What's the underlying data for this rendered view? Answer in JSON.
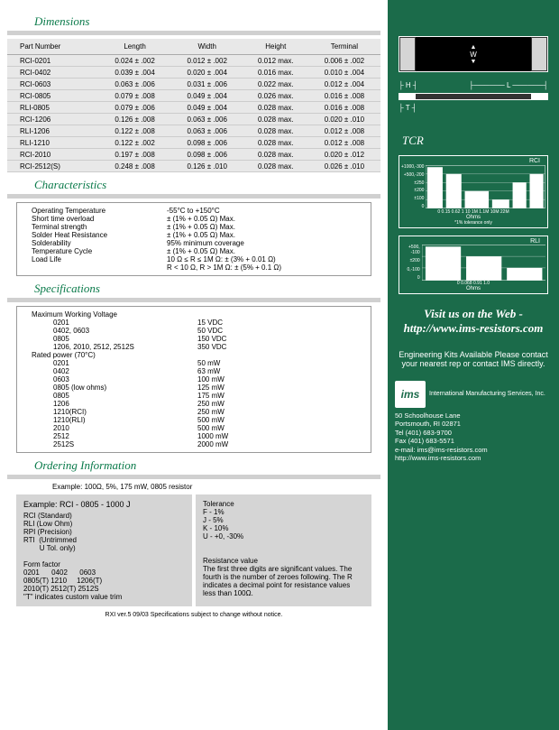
{
  "dimensions": {
    "title": "Dimensions",
    "headers": [
      "Part Number",
      "Length",
      "Width",
      "Height",
      "Terminal"
    ],
    "rows": [
      [
        "RCI-0201",
        "0.024 ± .002",
        "0.012 ± .002",
        "0.012 max.",
        "0.006 ± .002"
      ],
      [
        "RCI-0402",
        "0.039 ± .004",
        "0.020 ± .004",
        "0.016 max.",
        "0.010 ± .004"
      ],
      [
        "RCI-0603",
        "0.063 ± .006",
        "0.031 ± .006",
        "0.022 max.",
        "0.012 ± .004"
      ],
      [
        "RCI-0805",
        "0.079 ± .008",
        "0.049 ± .004",
        "0.026 max.",
        "0.016 ± .008"
      ],
      [
        "RLI-0805",
        "0.079 ± .006",
        "0.049 ± .004",
        "0.028 max.",
        "0.016 ± .008"
      ],
      [
        "RCI-1206",
        "0.126 ± .008",
        "0.063 ± .006",
        "0.028 max.",
        "0.020 ± .010"
      ],
      [
        "RLI-1206",
        "0.122 ± .008",
        "0.063 ± .006",
        "0.028 max.",
        "0.012 ± .008"
      ],
      [
        "RLI-1210",
        "0.122 ± .002",
        "0.098 ± .006",
        "0.028 max.",
        "0.012 ± .008"
      ],
      [
        "RCI-2010",
        "0.197 ± .008",
        "0.098 ± .006",
        "0.028 max.",
        "0.020 ± .012"
      ],
      [
        "RCI-2512(S)",
        "0.248 ± .008",
        "0.126 ± .010",
        "0.028 max.",
        "0.026 ± .010"
      ]
    ]
  },
  "characteristics": {
    "title": "Characteristics",
    "rows": [
      [
        "Operating Temperature",
        "-55°C to +150°C"
      ],
      [
        "Short time overload",
        "± (1% + 0.05 Ω) Max."
      ],
      [
        "Terminal strength",
        "± (1% + 0.05 Ω) Max."
      ],
      [
        "Solder Heat Resistance",
        "± (1% + 0.05 Ω) Max."
      ],
      [
        "Solderability",
        "95% minimum coverage"
      ],
      [
        "Temperature Cycle",
        "± (1% + 0.05 Ω) Max."
      ],
      [
        "Load Life",
        "10 Ω ≤ R ≤ 1M Ω: ± (3% + 0.01 Ω)"
      ],
      [
        "",
        "R < 10 Ω, R > 1M Ω: ± (5% + 0.1 Ω)"
      ]
    ]
  },
  "specifications": {
    "title": "Specifications",
    "groups": [
      {
        "header": "Maximum Working Voltage",
        "items": [
          [
            "0201",
            "15 VDC"
          ],
          [
            "0402, 0603",
            "50 VDC"
          ],
          [
            "0805",
            "150 VDC"
          ],
          [
            "1206, 2010, 2512, 2512S",
            "350 VDC"
          ]
        ]
      },
      {
        "header": "Rated power (70°C)",
        "items": [
          [
            "0201",
            "50 mW"
          ],
          [
            "0402",
            "63 mW"
          ],
          [
            "0603",
            "100 mW"
          ],
          [
            "0805 (low ohms)",
            "125 mW"
          ],
          [
            "0805",
            "175 mW"
          ],
          [
            "1206",
            "250 mW"
          ],
          [
            "1210(RCI)",
            "250 mW"
          ],
          [
            "1210(RLI)",
            "500 mW"
          ],
          [
            "2010",
            "500 mW"
          ],
          [
            "2512",
            "1000 mW"
          ],
          [
            "2512S",
            "2000 mW"
          ]
        ]
      }
    ]
  },
  "ordering": {
    "title": "Ordering Information",
    "example_label": "Example: 100Ω, 5%, 175 mW, 0805 resistor",
    "example2": "Example: RCI - 0805  -  1000 J",
    "series": [
      "RCI (Standard)",
      "RLI (Low Ohm)",
      "RPI (Precision)",
      "RTI  (Untrimmed",
      "        U Tol. only)"
    ],
    "tol_title": "Tolerance",
    "tol": [
      "F - 1%",
      "J - 5%",
      "K - 10%",
      "U - +0, -30%"
    ],
    "form_title": "Form  factor",
    "form": [
      "0201      0402      0603",
      "0805(T) 1210     1206(T)",
      "2010(T) 2512(T) 2512S",
      "",
      "\"T\" indicates custom value trim"
    ],
    "res_title": "Resistance value",
    "res_text": "The first three digits are significant values. The fourth is the number of zeroes following.  The R indicates a decimal point for resistance values less than 100Ω."
  },
  "footer": "RXI ver.5 09/03      Specifications subject to change without notice.",
  "right": {
    "tcr": "TCR",
    "chart1": {
      "title": "RCI",
      "ylabels": [
        "+1000,-300",
        "+500,-200",
        "±250",
        "±200",
        "±100",
        "0"
      ],
      "xlabel": "Ohms",
      "xnote": "*1% tolerance only",
      "xticks": "0  0.15 0.62  1   10   1M  1.1M 10M 22M"
    },
    "chart2": {
      "title": "RLI",
      "ylabels": [
        "+500, -100",
        "±200",
        "0,-100",
        "0"
      ],
      "xlabel": "Ohms",
      "xticks": "0    0.068   0.91    1.0"
    },
    "visit": "Visit us on the Web - http://www.ims-resistors.com",
    "kit": "Engineering Kits Available Please contact your nearest rep or contact IMS directly.",
    "logo_abbr": "ims",
    "logo_name": "International Manufacturing Services, Inc.",
    "addr": [
      "50 Schoolhouse Lane",
      "Portsmouth, RI 02871",
      "Tel (401) 683-9700",
      "Fax (401) 683-5571",
      "e-mail: ims@ims-resistors.com",
      "http://www.ims-resistors.com"
    ]
  },
  "diagram_labels": {
    "W": "W",
    "H": "H",
    "L": "L",
    "T": "T"
  }
}
